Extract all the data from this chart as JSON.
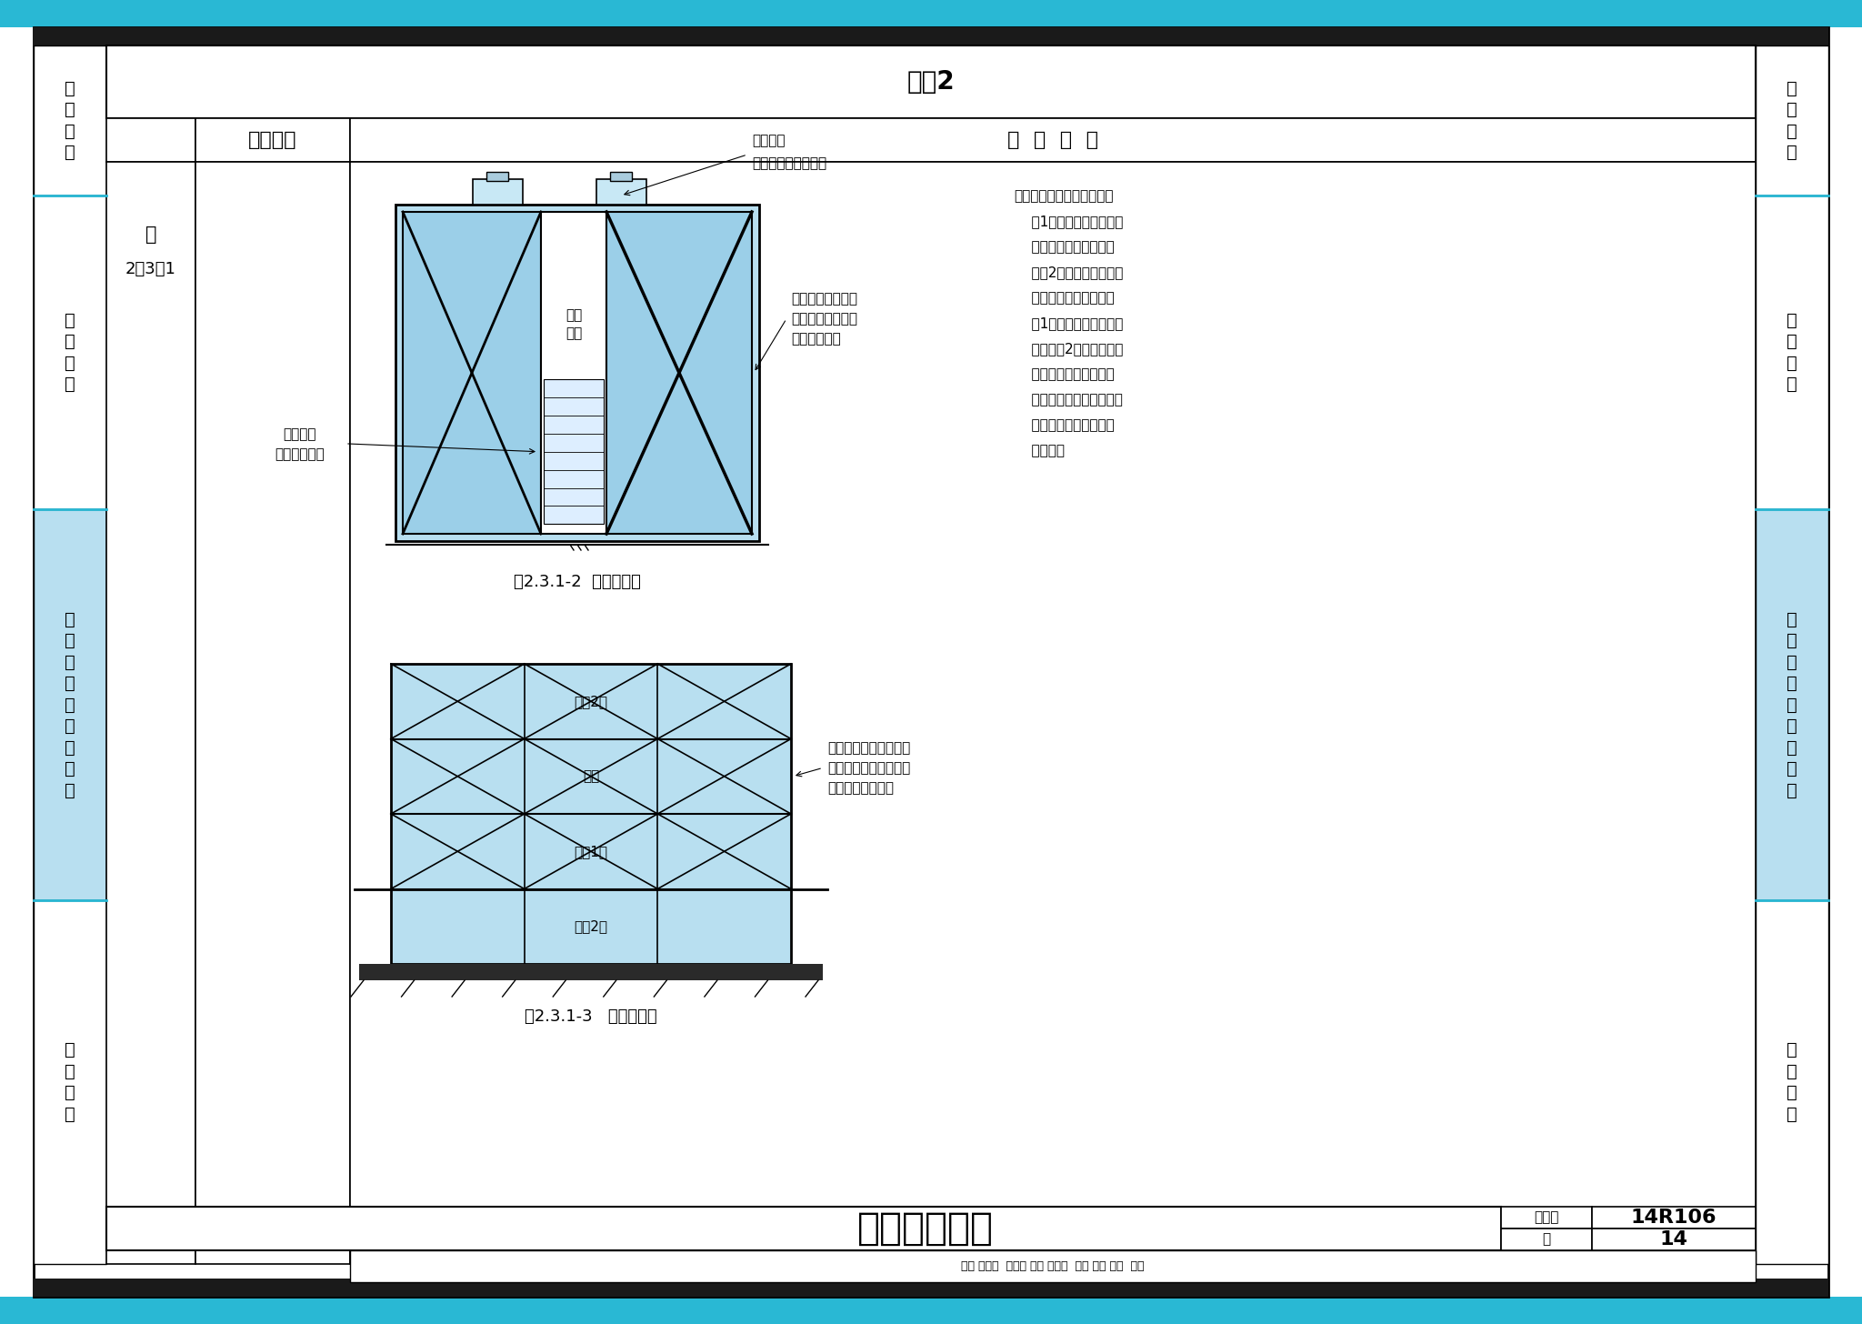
{
  "page_width": 20.48,
  "page_height": 14.56,
  "dpi": 100,
  "bg_color": "#ffffff",
  "cyan_bar_color": "#29b8d4",
  "dark_bar_color": "#1a1a1a",
  "light_blue_fill": "#b8dff0",
  "section_bg_cyan": "#b8dff0",
  "title_text": "续表2",
  "col1_label": "设计要点",
  "col2_label": "技  术  原  则",
  "cell_text_col1_line1": "续",
  "cell_text_col1_line2": "2．3．1",
  "bottom_title": "锅炉房的布置",
  "bottom_tuji": "图集号",
  "bottom_tuji_val": "14R106",
  "bottom_ye": "页",
  "bottom_ye_val": "14",
  "note_text_line1": "注：由于锅炉房本身高度超",
  "note_text_line2": "    过1层楼的高度，当设在",
  "note_text_line3": "    其他建筑物内时，可能",
  "note_text_line4": "    要占2个楼层的高度，对",
  "note_text_line5": "    这样的锅炉房，只要是",
  "note_text_line6": "    为1层布置，中间并没有",
  "note_text_line7": "    楼板隔成2层，不论它是",
  "note_text_line8": "    否已深入到该建筑物地",
  "note_text_line9": "    下第二层或地面第二层，",
  "note_text_line10": "    都仍将其视为地下一层",
  "note_text_line11": "    或首层。",
  "fig1_caption": "图2.3.1-2  平面示意图",
  "fig2_caption": "图2.3.1-3   剖面示意图",
  "anquan_top": "安全出口",
  "anquan_top_sub": "（直通室外的出口）",
  "boiler_label1": "燃油或燃气锅炉严",
  "boiler_label2": "禁设置主要通道、",
  "boiler_label3": "疏散口的两旁",
  "anquan_left": "安全出口",
  "anquan_left_sub": "（疏散楼梯）",
  "zhuyao": "主要\n通道",
  "floor_labels": [
    "地上2层",
    "首层",
    "地下1层",
    "地下2层"
  ],
  "boiler2_line1": "燃油和燃气锅炉房应设",
  "boiler2_line2": "置在首层或地下室一层",
  "boiler2_line3": "靠建筑物外墙部位",
  "sidebar_labels": [
    "编\n制\n说\n明",
    "相\n关\n术\n语",
    "设\n计\n技\n术\n原\n则\n与\n要\n点",
    "工\n程\n实\n例"
  ]
}
